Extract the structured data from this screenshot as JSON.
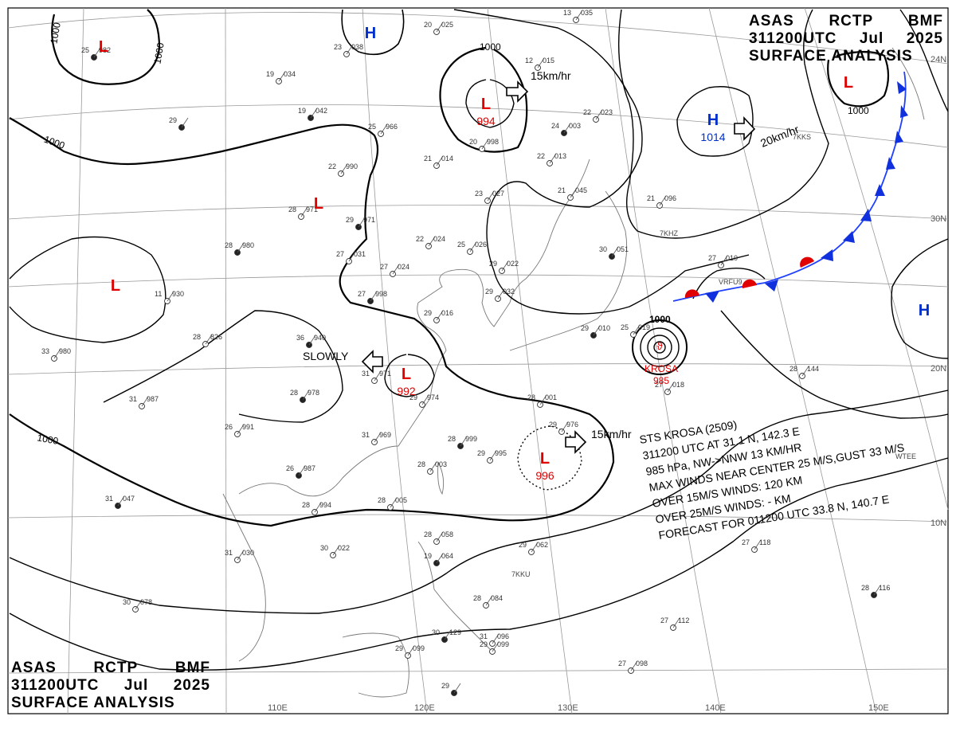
{
  "header_top": {
    "agency": "ASAS",
    "station": "RCTP",
    "office": "BMF",
    "time": "311200UTC",
    "month": "Jul",
    "year": "2025",
    "product": "SURFACE ANALYSIS"
  },
  "header_bottom": {
    "agency": "ASAS",
    "station": "RCTP",
    "office": "BMF",
    "time": "311200UTC",
    "month": "Jul",
    "year": "2025",
    "product": "SURFACE ANALYSIS"
  },
  "longitude_labels": [
    "110E",
    "120E",
    "130E",
    "140E",
    "150E"
  ],
  "latitude_labels": [
    "30N",
    "20N",
    "10N",
    "24N"
  ],
  "isobar_labels": [
    "1000",
    "1000",
    "1000",
    "1000",
    "1000",
    "1000",
    "1000"
  ],
  "pressure_centers": [
    {
      "type": "L",
      "value": ""
    },
    {
      "type": "H",
      "value": ""
    },
    {
      "type": "L",
      "value": "994"
    },
    {
      "type": "H",
      "value": "1014"
    },
    {
      "type": "L",
      "value": ""
    },
    {
      "type": "L",
      "value": ""
    },
    {
      "type": "L",
      "value": ""
    },
    {
      "type": "L",
      "value": "992"
    },
    {
      "type": "L",
      "value": "996"
    },
    {
      "type": "H",
      "value": ""
    }
  ],
  "motion_labels": [
    "15km/hr",
    "20km/hr",
    "SLOWLY",
    "15km/hr"
  ],
  "typhoon": {
    "name": "KROSA",
    "pressure": "985",
    "isobar": "1000"
  },
  "storm_info": [
    "STS  KROSA  (2509)",
    "311200 UTC  AT 31.1 N, 142.3 E",
    "985 hPa, NW->NNW  13 KM/HR",
    "MAX WINDS NEAR CENTER 25 M/S,GUST 33 M/S",
    "OVER 15M/S WINDS: 120 KM",
    "OVER 25M/S WINDS: - KM",
    "FORECAST FOR 011200 UTC 33.8 N, 140.7 E"
  ],
  "colors": {
    "low": "#e00000",
    "high": "#0030cc",
    "line": "#000000",
    "grid": "#999999",
    "coast": "#777777"
  },
  "station_plots": [
    {
      "t": "25",
      "p": "982"
    },
    {
      "t": "23",
      "p": "038"
    },
    {
      "t": "20",
      "p": "025"
    },
    {
      "t": "19",
      "p": "034"
    },
    {
      "t": "19",
      "p": "042"
    },
    {
      "t": "25",
      "p": "966"
    },
    {
      "t": "12",
      "p": "015"
    },
    {
      "t": "13",
      "p": "035"
    },
    {
      "t": "29",
      "p": ""
    },
    {
      "t": "22",
      "p": "990"
    },
    {
      "t": "21",
      "p": "014"
    },
    {
      "t": "20",
      "p": "998"
    },
    {
      "t": "24",
      "p": "003"
    },
    {
      "t": "22",
      "p": "023"
    },
    {
      "t": "22",
      "p": "013"
    },
    {
      "t": "28",
      "p": "971"
    },
    {
      "t": "29",
      "p": "971"
    },
    {
      "t": "23",
      "p": "027"
    },
    {
      "t": "21",
      "p": "045"
    },
    {
      "t": "21",
      "p": "096"
    },
    {
      "t": "28",
      "p": "980"
    },
    {
      "t": "27",
      "p": "031"
    },
    {
      "t": "22",
      "p": "024"
    },
    {
      "t": "25",
      "p": "026"
    },
    {
      "t": "30",
      "p": "051"
    },
    {
      "t": "27",
      "p": "024"
    },
    {
      "t": "29",
      "p": "022"
    },
    {
      "t": "11",
      "p": "930"
    },
    {
      "t": "27",
      "p": "998"
    },
    {
      "t": "29",
      "p": "032"
    },
    {
      "t": "29",
      "p": "016"
    },
    {
      "t": "28",
      "p": "826"
    },
    {
      "t": "36",
      "p": "940"
    },
    {
      "t": "33",
      "p": "980"
    },
    {
      "t": "31",
      "p": "971"
    },
    {
      "t": "29",
      "p": "974"
    },
    {
      "t": "28",
      "p": "978"
    },
    {
      "t": "31",
      "p": "987"
    },
    {
      "t": "26",
      "p": "991"
    },
    {
      "t": "31",
      "p": "969"
    },
    {
      "t": "28",
      "p": "999"
    },
    {
      "t": "29",
      "p": "995"
    },
    {
      "t": "28",
      "p": "001"
    },
    {
      "t": "29",
      "p": "976"
    },
    {
      "t": "26",
      "p": "987"
    },
    {
      "t": "28",
      "p": "003"
    },
    {
      "t": "28",
      "p": "994"
    },
    {
      "t": "28",
      "p": "005"
    },
    {
      "t": "31",
      "p": "047"
    },
    {
      "t": "30",
      "p": "022"
    },
    {
      "t": "31",
      "p": "030"
    },
    {
      "t": "28",
      "p": "058"
    },
    {
      "t": "19",
      "p": "064"
    },
    {
      "t": "29",
      "p": "062"
    },
    {
      "t": "30",
      "p": "078"
    },
    {
      "t": "28",
      "p": "084"
    },
    {
      "t": "30",
      "p": "129"
    },
    {
      "t": "31",
      "p": "096"
    },
    {
      "t": "29",
      "p": "099"
    },
    {
      "t": "29",
      "p": "099"
    },
    {
      "t": "29",
      "p": ""
    },
    {
      "t": "27",
      "p": "098"
    },
    {
      "t": "27",
      "p": "112"
    },
    {
      "t": "27",
      "p": "118"
    },
    {
      "t": "28",
      "p": "116"
    },
    {
      "t": "28",
      "p": "144"
    },
    {
      "t": "27",
      "p": "018"
    },
    {
      "t": "27",
      "p": "010"
    },
    {
      "t": "29",
      "p": "010"
    },
    {
      "t": "25",
      "p": "019"
    }
  ],
  "station_ids": [
    "7KKS",
    "7KHZ",
    "VRFU9",
    "WTEE",
    "7KKU"
  ]
}
